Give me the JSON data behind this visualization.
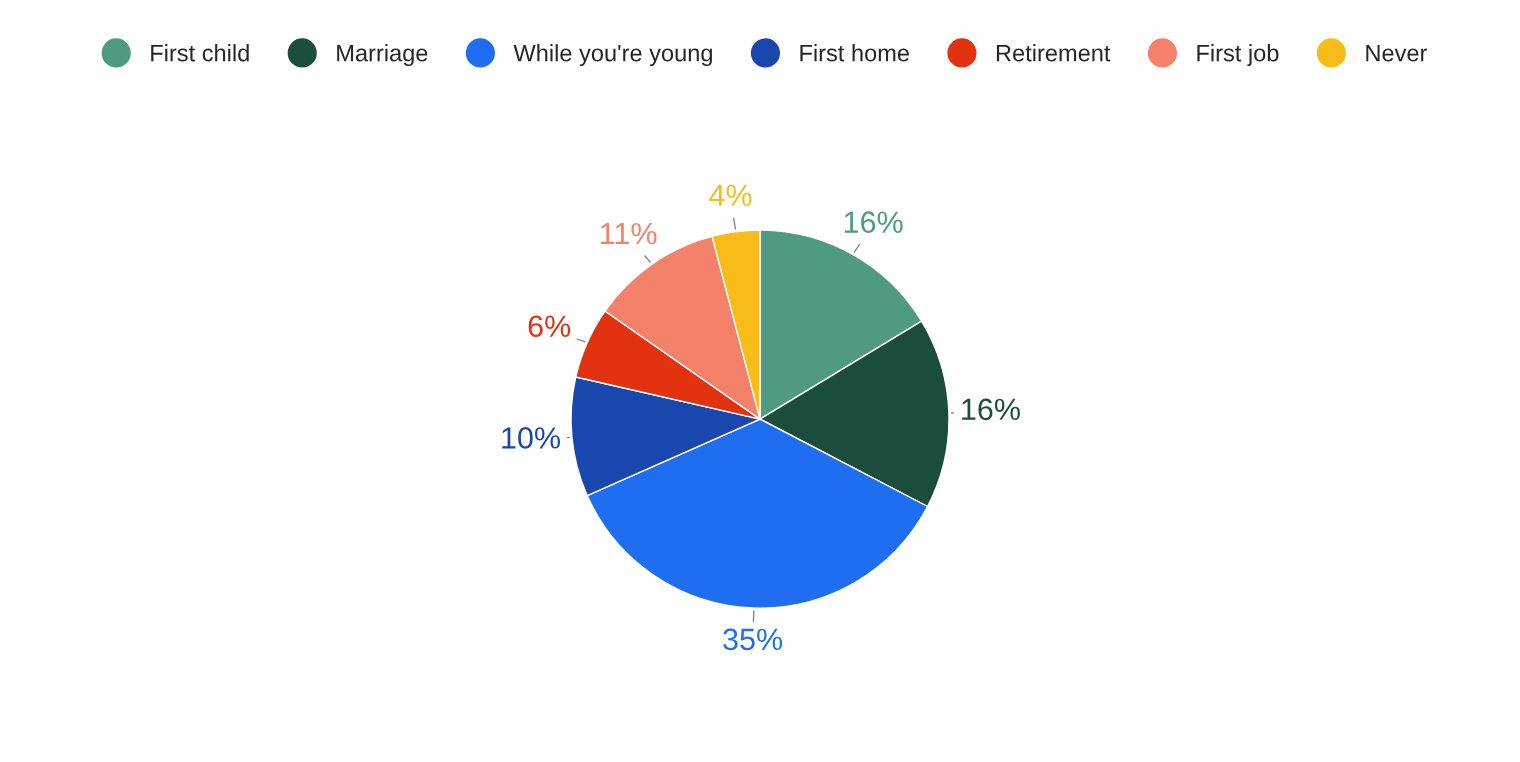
{
  "chart_data": {
    "type": "pie",
    "categories": [
      "First child",
      "Marriage",
      "While you're young",
      "First home",
      "Retirement",
      "First job",
      "Never"
    ],
    "values": [
      16,
      16,
      35,
      10,
      6,
      11,
      4
    ],
    "colors": [
      "#4f9a80",
      "#1a4d3c",
      "#1f6ef2",
      "#1a47ad",
      "#e2320f",
      "#f4826b",
      "#f7bc18"
    ],
    "value_labels": [
      "16%",
      "16%",
      "35%",
      "10%",
      "6%",
      "11%",
      "4%"
    ],
    "legend": "top"
  }
}
